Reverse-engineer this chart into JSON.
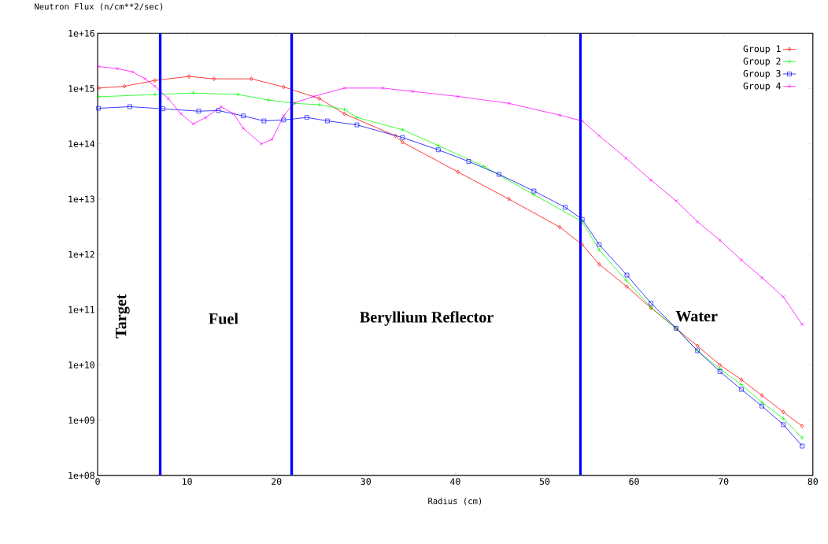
{
  "chart_data": {
    "type": "line",
    "ylabel": "Neutron Flux (n/cm**2/sec)",
    "xlabel": "Radius (cm)",
    "log": "y",
    "xlim": [
      0,
      80
    ],
    "xticks": [
      0,
      10,
      20,
      30,
      40,
      50,
      60,
      70,
      80
    ],
    "ylim": [
      100000000.0,
      1e+16
    ],
    "yticks": [
      {
        "value": 100000000.0,
        "label": "1e+08"
      },
      {
        "value": 1000000000.0,
        "label": "1e+09"
      },
      {
        "value": 10000000000.0,
        "label": "1e+10"
      },
      {
        "value": 100000000000.0,
        "label": "1e+11"
      },
      {
        "value": 1000000000000.0,
        "label": "1e+12"
      },
      {
        "value": 10000000000000.0,
        "label": "1e+13"
      },
      {
        "value": 100000000000000.0,
        "label": "1e+14"
      },
      {
        "value": 1000000000000000.0,
        "label": "1e+15"
      },
      {
        "value": 1e+16,
        "label": "1e+16"
      }
    ],
    "legend": "top right",
    "grid": false,
    "series": [
      {
        "name": "Group 1",
        "color": "#ff0000",
        "marker": "diamond",
        "x": [
          0.1,
          3,
          6.4,
          10.2,
          13,
          17.2,
          20.8,
          24.8,
          27.6,
          33.3,
          34.1,
          40.3,
          46,
          51.7,
          54.2,
          56.1,
          59.2,
          61.9,
          64.7,
          67.1,
          69.6,
          72,
          74.3,
          76.7,
          78.8
        ],
        "values": [
          1020000000000000.0,
          1100000000000000.0,
          1400000000000000.0,
          1660000000000000.0,
          1500000000000000.0,
          1500000000000000.0,
          1070000000000000.0,
          660000000000000.0,
          350000000000000.0,
          140000000000000.0,
          107000000000000.0,
          31000000000000.0,
          10000000000000.0,
          3100000000000.0,
          1500000000000.0,
          660000000000.0,
          260000000000.0,
          107000000000.0,
          46000000000.0,
          22000000000.0,
          10000000000.0,
          5400000000.0,
          2800000000.0,
          1400000000.0,
          780000000.0
        ]
      },
      {
        "name": "Group 2",
        "color": "#00ff00",
        "marker": "cross",
        "x": [
          0.1,
          6.4,
          10.7,
          15.7,
          19.1,
          22,
          24.8,
          27.6,
          29,
          34.1,
          38.1,
          43.2,
          48.8,
          54.2,
          56.1,
          59.1,
          61.9,
          64.7,
          67.1,
          69.6,
          72,
          74.3,
          76.7,
          78.8
        ],
        "values": [
          710000000000000.0,
          780000000000000.0,
          830000000000000.0,
          780000000000000.0,
          620000000000000.0,
          540000000000000.0,
          510000000000000.0,
          420000000000000.0,
          300000000000000.0,
          180000000000000.0,
          93000000000000.0,
          39000000000000.0,
          12000000000000.0,
          3900000000000.0,
          1200000000000.0,
          340000000000.0,
          110000000000.0,
          46000000000.0,
          18000000000.0,
          8500000000.0,
          4400000000.0,
          2100000000.0,
          1070000000.0,
          480000000.0
        ]
      },
      {
        "name": "Group 3",
        "color": "#0000ff",
        "marker": "square",
        "x": [
          0.1,
          3.6,
          7.3,
          11.3,
          13.5,
          16.3,
          18.6,
          20.8,
          23.4,
          25.7,
          29,
          34.1,
          38.1,
          41.5,
          44.9,
          48.8,
          52.3,
          54.2,
          56.1,
          59.2,
          61.9,
          64.7,
          67.1,
          69.6,
          72,
          74.3,
          76.7,
          78.8
        ],
        "values": [
          440000000000000.0,
          470000000000000.0,
          430000000000000.0,
          390000000000000.0,
          400000000000000.0,
          320000000000000.0,
          260000000000000.0,
          270000000000000.0,
          300000000000000.0,
          260000000000000.0,
          220000000000000.0,
          130000000000000.0,
          78000000000000.0,
          48000000000000.0,
          28000000000000.0,
          14000000000000.0,
          7100000000000.0,
          4300000000000.0,
          1500000000000.0,
          420000000000.0,
          130000000000.0,
          46000000000.0,
          18000000000.0,
          7600000000.0,
          3600000000.0,
          1800000000.0,
          830000000.0,
          340000000.0
        ]
      },
      {
        "name": "Group 4",
        "color": "#ff00ff",
        "marker": "cross",
        "x": [
          0.1,
          2.2,
          3.9,
          5.3,
          6.4,
          7.9,
          9.3,
          10.7,
          12.1,
          13.8,
          15.2,
          16.3,
          18.3,
          19.5,
          20.8,
          22,
          24.2,
          27.6,
          31.9,
          35.2,
          40.3,
          46,
          51.7,
          54.2,
          56.1,
          59.1,
          61.9,
          64.7,
          67.1,
          69.6,
          72,
          74.3,
          76.7,
          78.8
        ],
        "values": [
          2500000000000000.0,
          2300000000000000.0,
          2000000000000000.0,
          1500000000000000.0,
          1100000000000000.0,
          660000000000000.0,
          350000000000000.0,
          230000000000000.0,
          300000000000000.0,
          470000000000000.0,
          350000000000000.0,
          190000000000000.0,
          100000000000000.0,
          120000000000000.0,
          320000000000000.0,
          550000000000000.0,
          720000000000000.0,
          1020000000000000.0,
          1020000000000000.0,
          890000000000000.0,
          720000000000000.0,
          540000000000000.0,
          330000000000000.0,
          260000000000000.0,
          140000000000000.0,
          55000000000000.0,
          22000000000000.0,
          9300000000000.0,
          3900000000000.0,
          1800000000000.0,
          790000000000.0,
          380000000000.0,
          170000000000.0,
          54000000000.0
        ]
      }
    ],
    "ref_lines": [
      {
        "axis": "x",
        "value": 7,
        "color": "#0000ff"
      },
      {
        "axis": "x",
        "value": 21.7,
        "color": "#0000ff"
      },
      {
        "axis": "x",
        "value": 54,
        "color": "#0000ff"
      }
    ],
    "annotations": [
      "Target",
      "Fuel",
      "Beryllium Reflector",
      "Water"
    ]
  }
}
